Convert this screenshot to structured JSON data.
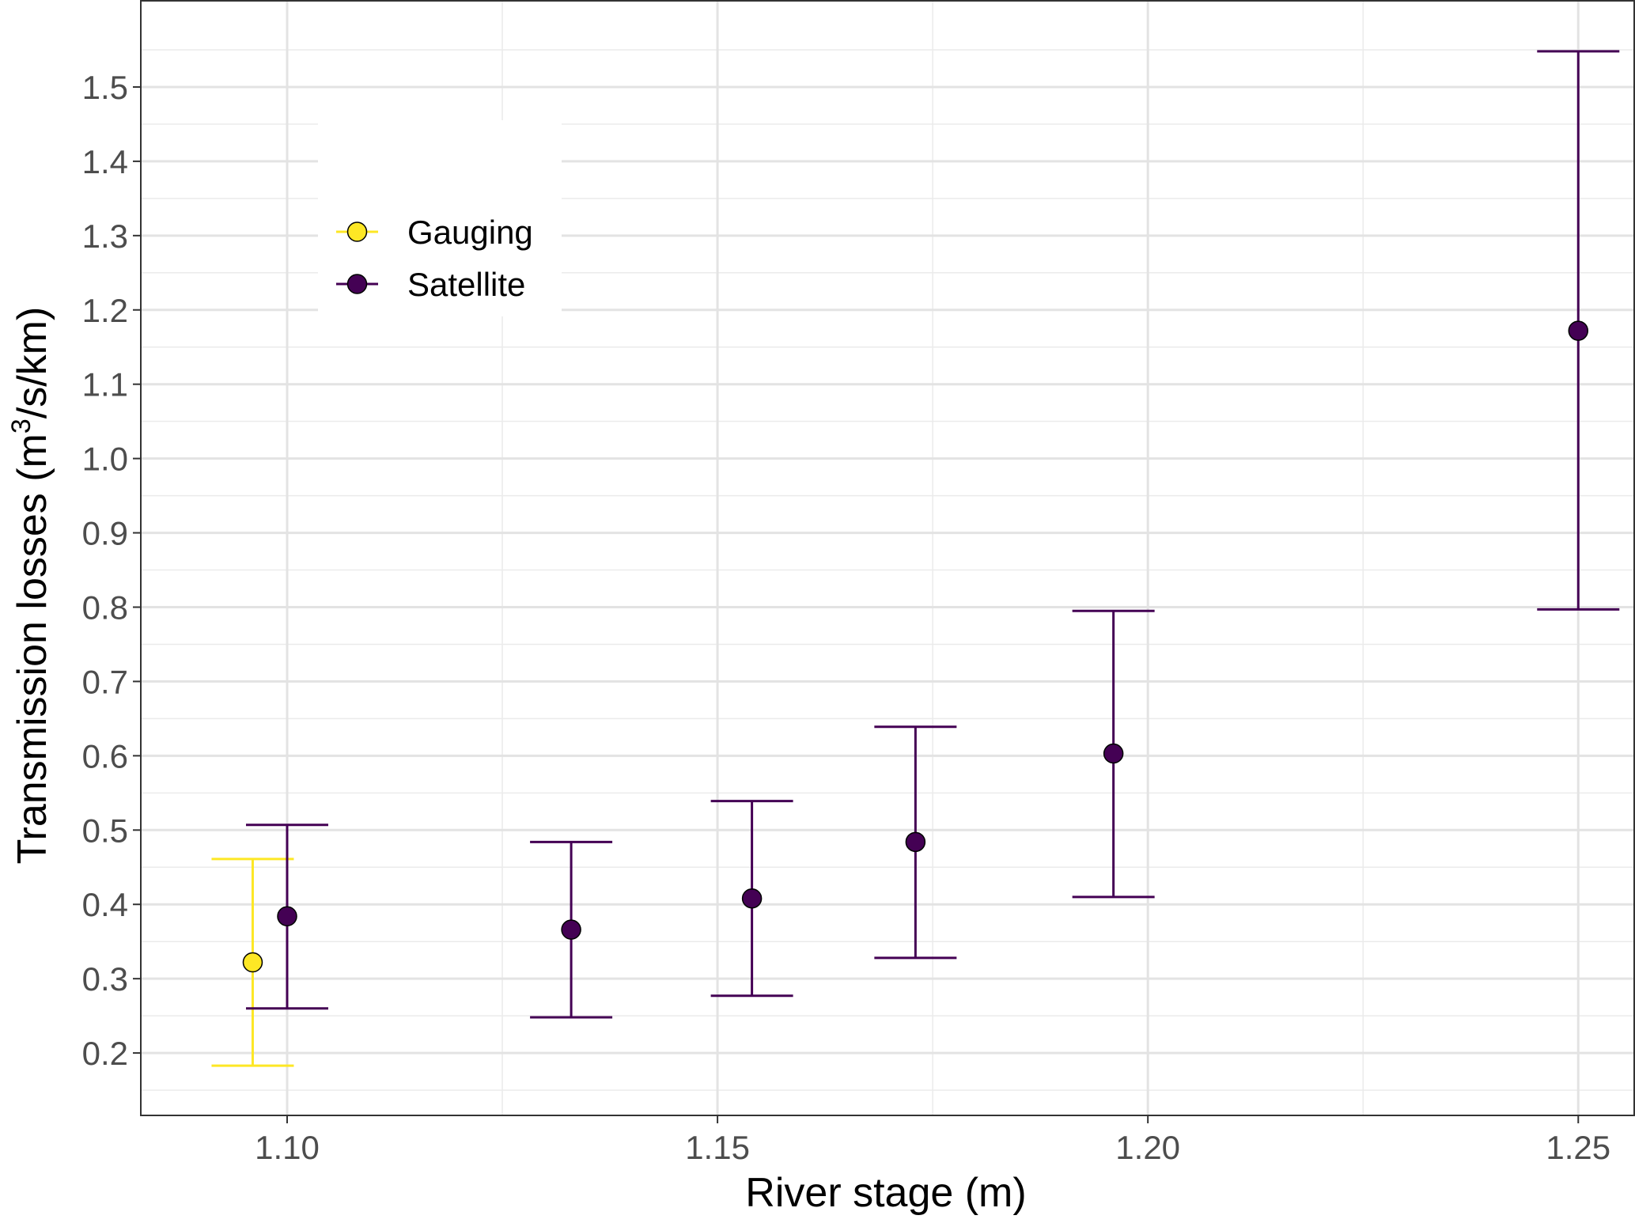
{
  "chart_data": {
    "type": "scatter",
    "title": "",
    "xlabel": "River stage (m)",
    "ylabel": "Transmission losses (m³/s/km)",
    "ylabel_parts": {
      "before": "Transmission losses (m",
      "superscript": "3",
      "after": "/s/km)"
    },
    "xlim": [
      1.083,
      1.2565
    ],
    "ylim": [
      0.116,
      1.616
    ],
    "x_ticks": [
      1.1,
      1.15,
      1.2,
      1.25
    ],
    "x_tick_labels": [
      "1.10",
      "1.15",
      "1.20",
      "1.25"
    ],
    "y_ticks": [
      0.2,
      0.3,
      0.4,
      0.5,
      0.6,
      0.7,
      0.8,
      0.9,
      1.0,
      1.1,
      1.2,
      1.3,
      1.4,
      1.5
    ],
    "y_tick_labels": [
      "0.2",
      "0.3",
      "0.4",
      "0.5",
      "0.6",
      "0.7",
      "0.8",
      "0.9",
      "1.0",
      "1.1",
      "1.2",
      "1.3",
      "1.4",
      "1.5"
    ],
    "grid": true,
    "legend_position": "top-left",
    "series": [
      {
        "name": "Gauging",
        "color": "#fde725",
        "points": [
          {
            "x": 1.096,
            "y": 0.322,
            "ymin": 0.183,
            "ymax": 0.461
          }
        ]
      },
      {
        "name": "Satellite",
        "color": "#440154",
        "points": [
          {
            "x": 1.1,
            "y": 0.384,
            "ymin": 0.26,
            "ymax": 0.507
          },
          {
            "x": 1.133,
            "y": 0.366,
            "ymin": 0.248,
            "ymax": 0.484
          },
          {
            "x": 1.154,
            "y": 0.408,
            "ymin": 0.277,
            "ymax": 0.539
          },
          {
            "x": 1.173,
            "y": 0.484,
            "ymin": 0.328,
            "ymax": 0.639
          },
          {
            "x": 1.196,
            "y": 0.603,
            "ymin": 0.41,
            "ymax": 0.795
          },
          {
            "x": 1.25,
            "y": 1.172,
            "ymin": 0.797,
            "ymax": 1.548
          }
        ]
      }
    ]
  }
}
